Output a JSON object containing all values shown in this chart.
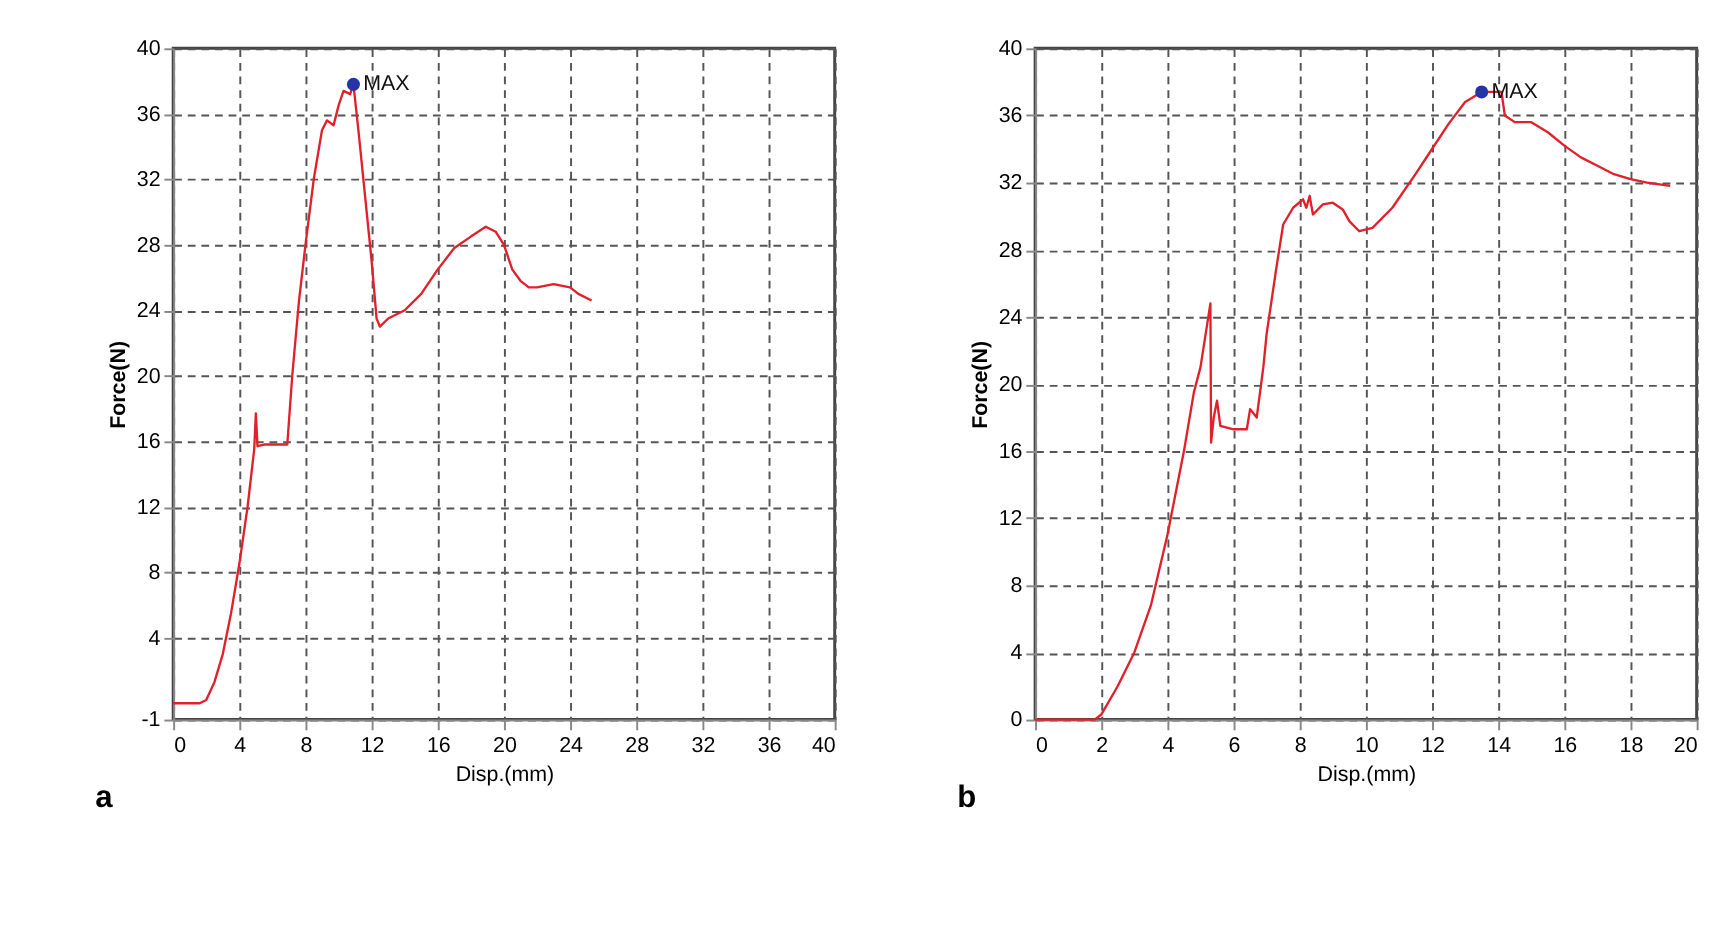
{
  "chart_data": [
    {
      "type": "line",
      "xlabel": "Disp.(mm)",
      "ylabel": "Force(N)",
      "xlim": [
        0,
        40
      ],
      "xticks": [
        0,
        4,
        8,
        12,
        16,
        20,
        24,
        28,
        32,
        36,
        40
      ],
      "ylim": [
        -1,
        40
      ],
      "yticks": [
        -1,
        4,
        8,
        12,
        16,
        20,
        24,
        28,
        32,
        36,
        40
      ],
      "grid": true,
      "line_style": "dashed",
      "series": [
        {
          "color": "#e0202a",
          "x": [
            0,
            1.6,
            2.0,
            2.5,
            3,
            3.5,
            4,
            4.5,
            4.9,
            5.0,
            5.1,
            5.5,
            6.9,
            7.2,
            7.6,
            8,
            8.5,
            9.0,
            9.3,
            9.7,
            10.0,
            10.3,
            10.7,
            10.9,
            11.2,
            11.6,
            12,
            12.3,
            12.5,
            13,
            14,
            15,
            16,
            17,
            18,
            18.9,
            19.5,
            20,
            20.5,
            21,
            21.5,
            22,
            23,
            24,
            24.5,
            25.3
          ],
          "values": [
            0,
            0,
            0.2,
            1.3,
            3,
            5.5,
            8.5,
            12,
            15.5,
            17.7,
            15.7,
            15.8,
            15.8,
            20,
            24.5,
            28,
            32,
            35,
            35.6,
            35.3,
            36.5,
            37.4,
            37.2,
            37.8,
            35,
            31,
            27,
            23.5,
            23.0,
            23.5,
            24,
            25,
            26.5,
            27.8,
            28.5,
            29.1,
            28.8,
            28,
            26.5,
            25.8,
            25.4,
            25.4,
            25.6,
            25.4,
            25,
            24.6
          ],
          "line_style": "solid"
        },
        {
          "type": "scatter",
          "marker": "circle",
          "color": "#2433a8",
          "x": [
            10.9
          ],
          "values": [
            37.8
          ]
        }
      ],
      "annotations": [
        {
          "text": "MAX",
          "x": 10.9,
          "y": 37.8
        },
        "a"
      ]
    },
    {
      "type": "line",
      "xlabel": "Disp.(mm)",
      "ylabel": "Force(N)",
      "xlim": [
        0,
        20
      ],
      "xticks": [
        0,
        2,
        4,
        6,
        8,
        10,
        12,
        14,
        16,
        18,
        20
      ],
      "ylim": [
        0,
        40
      ],
      "yticks": [
        0,
        4,
        8,
        12,
        16,
        20,
        24,
        28,
        32,
        36,
        40
      ],
      "grid": true,
      "line_style": "dashed",
      "series": [
        {
          "color": "#e0202a",
          "x": [
            0,
            1.8,
            2.0,
            2.5,
            3,
            3.5,
            4,
            4.5,
            4.8,
            5.0,
            5.3,
            5.32,
            5.4,
            5.5,
            5.6,
            6,
            6.4,
            6.5,
            6.7,
            6.9,
            7.0,
            7.3,
            7.5,
            7.8,
            8.1,
            8.2,
            8.3,
            8.4,
            8.7,
            9.0,
            9.3,
            9.5,
            9.8,
            10.2,
            10.8,
            11.5,
            12,
            12.5,
            13,
            13.5,
            14.1,
            14.2,
            14.5,
            15,
            15.5,
            16,
            16.5,
            17,
            17.5,
            18,
            18.5,
            19.2
          ],
          "values": [
            0,
            0,
            0.3,
            2,
            4,
            6.8,
            11,
            16,
            19.5,
            21,
            24.8,
            16.5,
            18,
            19,
            17.5,
            17.3,
            17.3,
            18.5,
            18,
            21,
            23,
            27,
            29.5,
            30.5,
            31.0,
            30.5,
            31.2,
            30.1,
            30.7,
            30.8,
            30.4,
            29.7,
            29.1,
            29.3,
            30.5,
            32.5,
            34,
            35.5,
            36.8,
            37.4,
            37.4,
            36,
            35.6,
            35.6,
            35,
            34.2,
            33.5,
            33,
            32.5,
            32.2,
            32.0,
            31.8
          ],
          "line_style": "solid"
        },
        {
          "type": "scatter",
          "marker": "circle",
          "color": "#2433a8",
          "x": [
            13.5
          ],
          "values": [
            37.4
          ]
        }
      ],
      "annotations": [
        {
          "text": "MAX",
          "x": 13.5,
          "y": 37.4
        },
        "b"
      ]
    }
  ]
}
